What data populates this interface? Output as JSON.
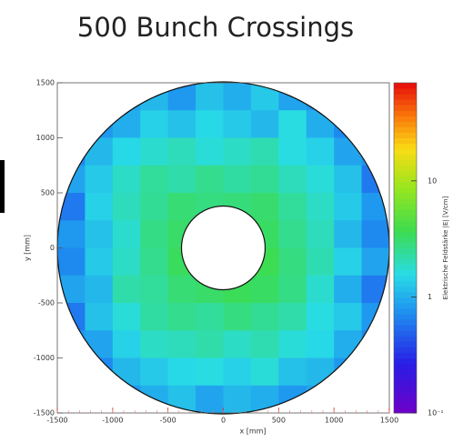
{
  "chart_data": {
    "type": "heatmap",
    "title": "500 Bunch Crossings",
    "x_label": "x [mm]",
    "y_label": "y [mm]",
    "z_label": "Elektrische Feldstärke |E| [V/cm]",
    "xlim": [
      -1500,
      1500
    ],
    "ylim": [
      -1500,
      1500
    ],
    "xticks": [
      -1500,
      -1000,
      -500,
      0,
      500,
      1000,
      1500
    ],
    "yticks": [
      -1500,
      -1000,
      -500,
      0,
      500,
      1000,
      1500
    ],
    "zlim": [
      0.1,
      70
    ],
    "zscale": "log",
    "zticks": [
      {
        "value": 0.1,
        "label": "10⁻¹"
      },
      1,
      10
    ],
    "x": [
      -1375,
      -1125,
      -875,
      -625,
      -375,
      -125,
      125,
      375,
      625,
      875,
      1125,
      1375
    ],
    "y": [
      1375,
      1125,
      875,
      625,
      375,
      125,
      -125,
      -375,
      -625,
      -875,
      -1125,
      -1375
    ],
    "values": [
      [
        null,
        null,
        0.9,
        1.1,
        0.8,
        1.2,
        1.0,
        1.3,
        0.9,
        0.8,
        null,
        null
      ],
      [
        null,
        0.8,
        1.0,
        1.4,
        1.2,
        1.5,
        1.3,
        1.1,
        1.6,
        1.0,
        0.7,
        null
      ],
      [
        0.7,
        1.1,
        1.5,
        1.8,
        2.0,
        1.7,
        1.9,
        2.1,
        1.6,
        1.4,
        0.9,
        0.8
      ],
      [
        0.9,
        1.3,
        1.9,
        2.4,
        2.2,
        2.6,
        2.3,
        2.5,
        2.0,
        1.7,
        1.2,
        0.6
      ],
      [
        0.6,
        1.4,
        2.0,
        2.5,
        3.0,
        2.8,
        2.9,
        3.1,
        2.4,
        1.9,
        1.3,
        0.8
      ],
      [
        0.8,
        1.2,
        1.8,
        2.7,
        3.2,
        null,
        null,
        3.3,
        2.6,
        2.0,
        1.1,
        0.7
      ],
      [
        0.7,
        1.3,
        1.9,
        2.6,
        3.4,
        null,
        null,
        3.6,
        2.8,
        2.1,
        1.4,
        0.9
      ],
      [
        0.9,
        1.1,
        2.2,
        2.4,
        3.0,
        3.2,
        3.5,
        3.3,
        2.7,
        1.8,
        1.0,
        0.6
      ],
      [
        0.6,
        1.2,
        1.7,
        2.3,
        2.6,
        2.4,
        2.8,
        2.5,
        2.2,
        1.6,
        1.3,
        0.8
      ],
      [
        0.8,
        0.9,
        1.4,
        1.9,
        2.0,
        2.2,
        1.9,
        2.1,
        1.7,
        1.5,
        1.0,
        0.7
      ],
      [
        null,
        0.7,
        1.1,
        1.3,
        1.5,
        1.6,
        1.4,
        1.7,
        1.2,
        1.1,
        0.8,
        null
      ],
      [
        null,
        null,
        0.8,
        1.0,
        1.2,
        0.9,
        1.1,
        1.0,
        0.8,
        0.9,
        null,
        null
      ]
    ]
  }
}
